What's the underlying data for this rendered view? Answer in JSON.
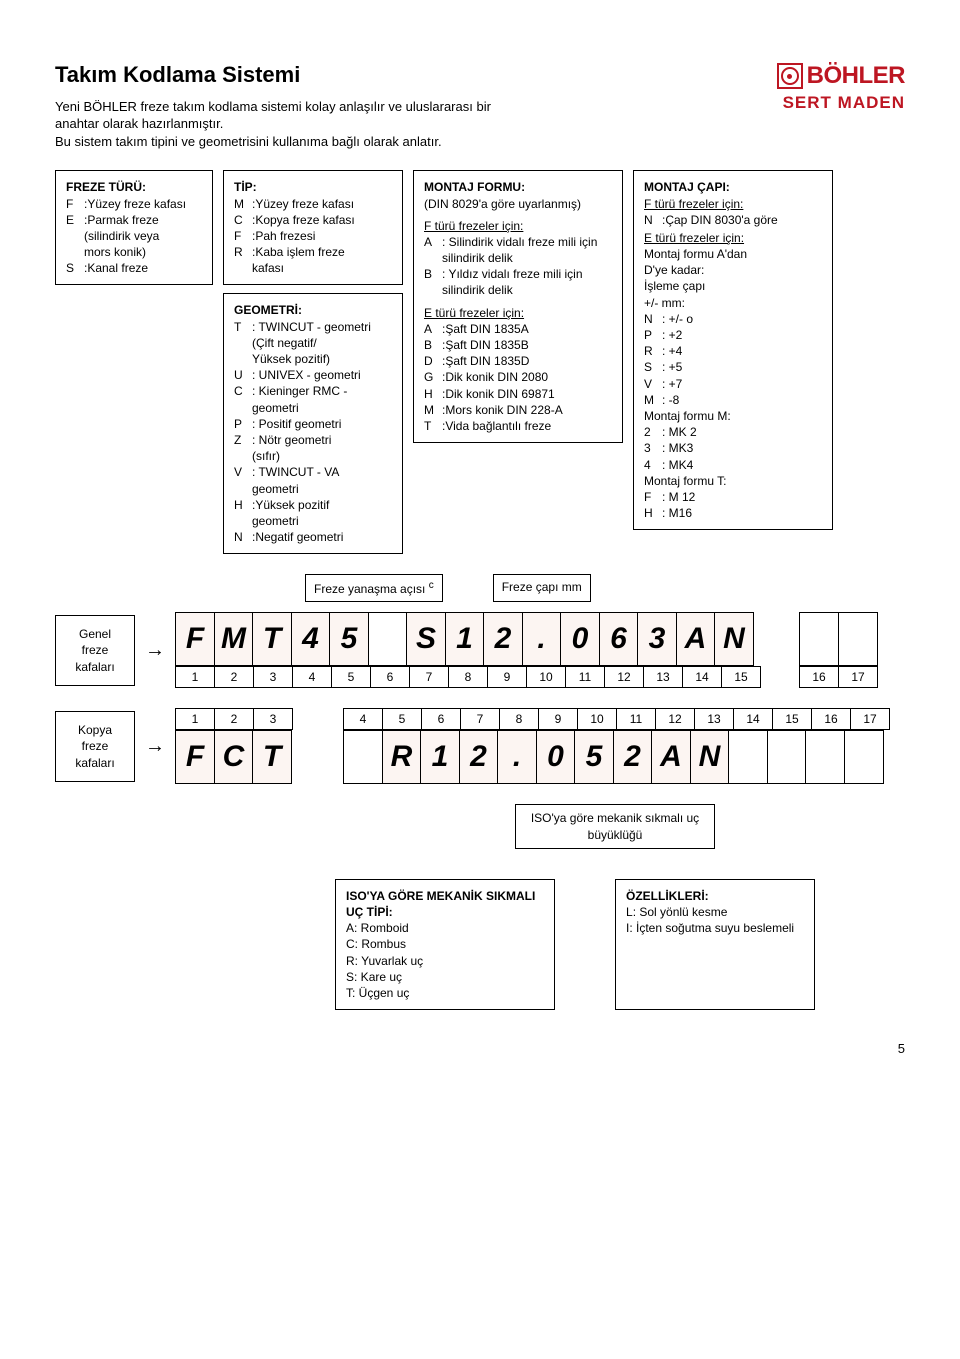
{
  "header": {
    "title": "Takım Kodlama Sistemi",
    "desc1": "Yeni BÖHLER freze takım kodlama sistemi kolay anlaşılır ve uluslararası bir anahtar olarak hazırlanmıştır.",
    "desc2": "Bu sistem takım tipini ve geometrisini kullanıma bağlı olarak anlatır.",
    "logo_top": "BÖHLER",
    "logo_bottom": "SERT MADEN"
  },
  "boxes": {
    "freze_turu": {
      "title": "FREZE TÜRÜ:",
      "items": [
        {
          "k": "F",
          "v": ":Yüzey freze kafası"
        },
        {
          "k": "E",
          "v": ":Parmak freze"
        },
        {
          "k": "",
          "v": "(silindirik veya"
        },
        {
          "k": "",
          "v": "mors konik)"
        },
        {
          "k": "S",
          "v": ":Kanal freze"
        }
      ]
    },
    "tip": {
      "title": "TİP:",
      "items": [
        {
          "k": "M",
          "v": ":Yüzey freze kafası"
        },
        {
          "k": "C",
          "v": ":Kopya freze kafası"
        },
        {
          "k": "F",
          "v": ":Pah frezesi"
        },
        {
          "k": "R",
          "v": ":Kaba işlem freze"
        },
        {
          "k": "",
          "v": "kafası"
        }
      ]
    },
    "geometri": {
      "title": "GEOMETRİ:",
      "items": [
        {
          "k": "T",
          "v": ": TWINCUT - geometri"
        },
        {
          "k": "",
          "v": "(Çift negatif/"
        },
        {
          "k": "",
          "v": "Yüksek pozitif)"
        },
        {
          "k": "U",
          "v": ": UNIVEX - geometri"
        },
        {
          "k": "C",
          "v": ": Kieninger RMC -"
        },
        {
          "k": "",
          "v": "geometri"
        },
        {
          "k": "P",
          "v": ": Positif geometri"
        },
        {
          "k": "Z",
          "v": ": Nötr geometri"
        },
        {
          "k": "",
          "v": "(sıfır)"
        },
        {
          "k": "V",
          "v": ": TWINCUT - VA"
        },
        {
          "k": "",
          "v": "geometri"
        },
        {
          "k": "H",
          "v": ":Yüksek pozitif"
        },
        {
          "k": "",
          "v": "geometri"
        },
        {
          "k": "N",
          "v": ":Negatif geometri"
        }
      ]
    },
    "montaj_formu": {
      "title": "MONTAJ FORMU:",
      "sub1": "(DIN 8029'a göre uyarlanmış)",
      "sub2": "F türü frezeler için:",
      "items_f": [
        {
          "k": "A",
          "v": ": Silindirik vidalı freze mili için silindirik delik"
        },
        {
          "k": "B",
          "v": ": Yıldız vidalı freze mili için silindirik delik"
        }
      ],
      "sub3": "E türü frezeler için:",
      "items_e": [
        {
          "k": "A",
          "v": ":Şaft DIN 1835A"
        },
        {
          "k": "B",
          "v": ":Şaft DIN 1835B"
        },
        {
          "k": "D",
          "v": ":Şaft DIN 1835D"
        },
        {
          "k": "G",
          "v": ":Dik konik DIN 2080"
        },
        {
          "k": "H",
          "v": ":Dik konik DIN 69871"
        },
        {
          "k": "M",
          "v": ":Mors konik DIN 228-A"
        },
        {
          "k": "T",
          "v": ":Vida bağlantılı freze"
        }
      ]
    },
    "montaj_capi": {
      "title": "MONTAJ ÇAPI:",
      "sub1": "F türü frezeler için:",
      "items_f": [
        {
          "k": "N",
          "v": ":Çap DIN 8030'a göre"
        }
      ],
      "sub2": "E türü frezeler için:",
      "line1": "Montaj formu A'dan",
      "line2": "D'ye kadar:",
      "line3": "İşleme çapı",
      "line4": "+/- mm:",
      "items_pm": [
        {
          "k": "N",
          "v": ": +/- o"
        },
        {
          "k": "P",
          "v": ": +2"
        },
        {
          "k": "R",
          "v": ": +4"
        },
        {
          "k": "S",
          "v": ": +5"
        },
        {
          "k": "V",
          "v": ": +7"
        },
        {
          "k": "M",
          "v": ": -8"
        }
      ],
      "sub3": "Montaj formu M:",
      "items_m": [
        {
          "k": "2",
          "v": ": MK 2"
        },
        {
          "k": "3",
          "v": ": MK3"
        },
        {
          "k": "4",
          "v": ": MK4"
        }
      ],
      "sub4": "Montaj formu T:",
      "items_t": [
        {
          "k": "F",
          "v": ": M 12"
        },
        {
          "k": "H",
          "v": ": M16"
        }
      ]
    }
  },
  "mid_labels": {
    "approach": "Freze yanaşma açısı",
    "approach_sup": "c",
    "diameter": "Freze çapı mm"
  },
  "code1": {
    "side": "Genel freze kafaları",
    "cells": [
      "F",
      "M",
      "T",
      "4",
      "5",
      "",
      "S",
      "1",
      "2",
      ".",
      "0",
      "6",
      "3",
      "A",
      "N"
    ],
    "nums": [
      "1",
      "2",
      "3",
      "4",
      "5",
      "6",
      "7",
      "8",
      "9",
      "10",
      "11",
      "12",
      "13",
      "14",
      "15"
    ],
    "extra_nums": [
      "16",
      "17"
    ]
  },
  "code2": {
    "side": "Kopya freze kafaları",
    "cells_a": [
      "F",
      "C",
      "T"
    ],
    "nums_a": [
      "1",
      "2",
      "3"
    ],
    "cells_b": [
      "",
      "R",
      "1",
      "2",
      ".",
      "0",
      "5",
      "2",
      "A",
      "N",
      "",
      "",
      "",
      ""
    ],
    "nums_b": [
      "4",
      "5",
      "6",
      "7",
      "8",
      "9",
      "10",
      "11",
      "12",
      "13",
      "14",
      "15",
      "16",
      "17"
    ]
  },
  "iso_label": "ISO'ya göre mekanik sıkmalı uç büyüklüğü",
  "bottom": {
    "iso_tip": {
      "title": "ISO'YA GÖRE MEKANİK SIKMALI UÇ TİPİ:",
      "items": [
        {
          "k": "A",
          "v": ": Romboid"
        },
        {
          "k": "C",
          "v": ": Rombus"
        },
        {
          "k": "R",
          "v": ": Yuvarlak uç"
        },
        {
          "k": "S",
          "v": ": Kare uç"
        },
        {
          "k": "T",
          "v": ": Üçgen uç"
        }
      ]
    },
    "ozellikler": {
      "title": "ÖZELLİKLERİ:",
      "items": [
        {
          "k": "L",
          "v": ": Sol yönlü kesme"
        },
        {
          "k": "I",
          "v": ": İçten soğutma suyu beslemeli"
        }
      ]
    }
  },
  "page_num": "5",
  "colors": {
    "brand": "#bd1622",
    "cell_bg": "#fcf5f2",
    "border": "#000000"
  }
}
